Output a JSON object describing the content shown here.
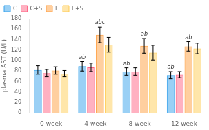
{
  "chart_data": {
    "type": "bar",
    "categories": [
      "0 week",
      "4 week",
      "8 week",
      "12 week"
    ],
    "series": [
      {
        "name": "C",
        "values": [
          82,
          89,
          79,
          72
        ],
        "errors": [
          8,
          9,
          7,
          7
        ],
        "annotations": [
          null,
          "ab",
          "ab",
          "ab"
        ]
      },
      {
        "name": "C+S",
        "values": [
          76,
          87,
          79,
          73
        ],
        "errors": [
          7,
          8,
          7,
          6
        ]
      },
      {
        "name": "E",
        "values": [
          81,
          149,
          128,
          127
        ],
        "errors": [
          7,
          15,
          14,
          9
        ],
        "annotations": [
          null,
          "abc",
          "ab",
          "ab"
        ]
      },
      {
        "name": "E+S",
        "values": [
          75,
          130,
          115,
          123
        ],
        "errors": [
          6,
          14,
          14,
          10
        ]
      }
    ],
    "ylabel": "plasma AST (U/L)",
    "ylim": [
      0,
      180
    ],
    "yticks": [
      0,
      20,
      40,
      60,
      80,
      100,
      120,
      140,
      160,
      180
    ],
    "grid": false,
    "legend": "upper left"
  }
}
